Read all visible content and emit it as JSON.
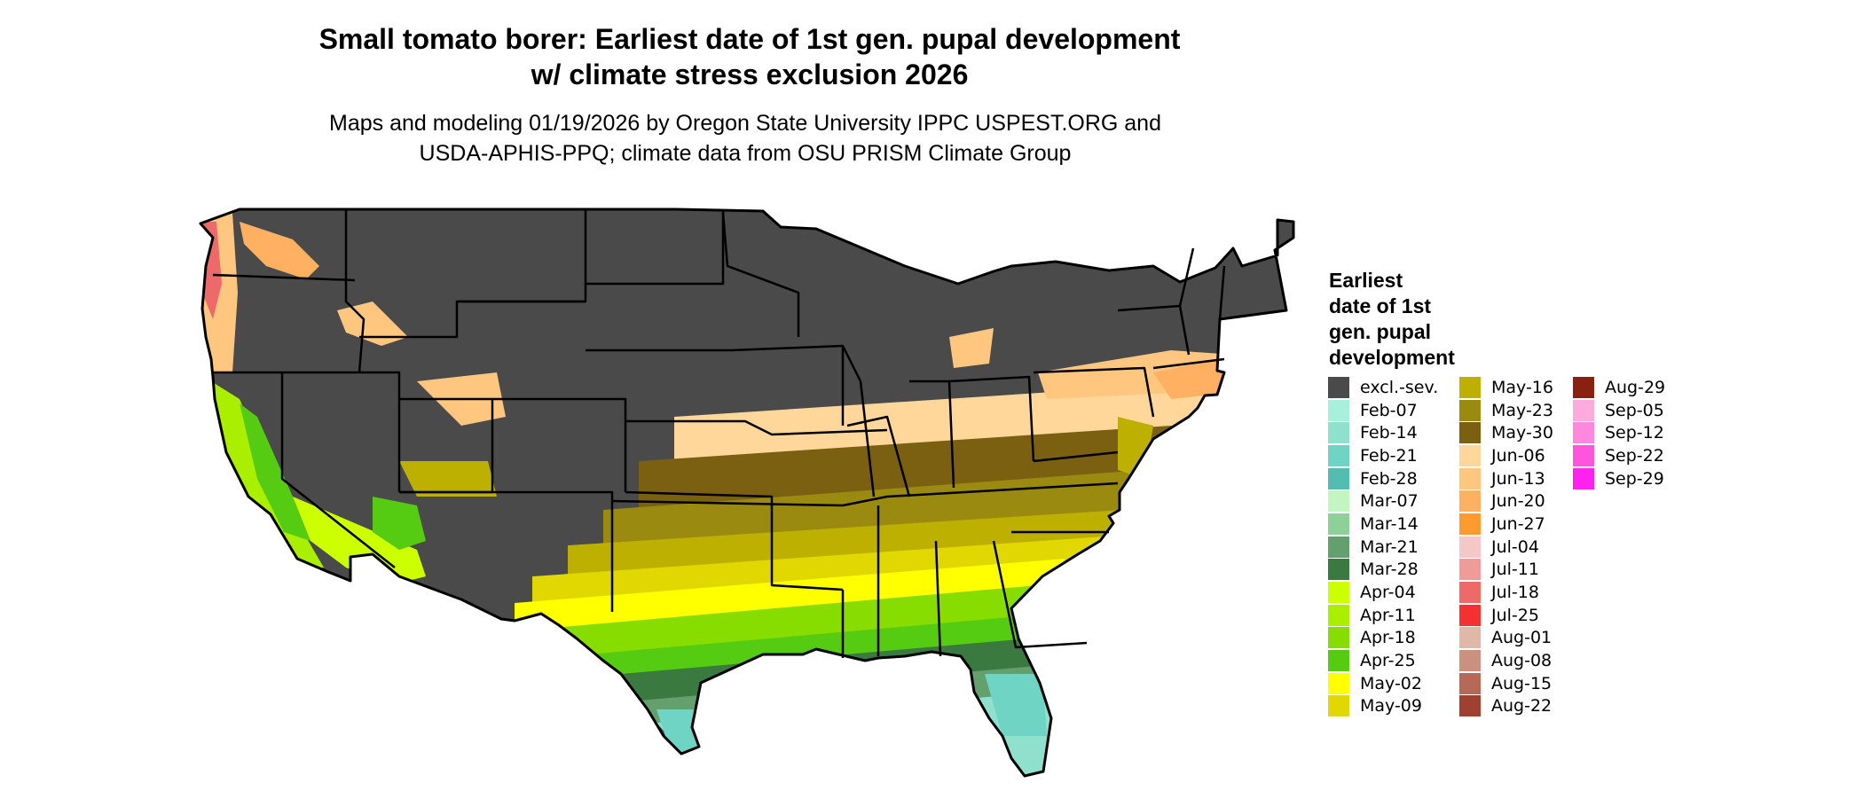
{
  "title_line1": "Small tomato borer: Earliest date of 1st gen. pupal development",
  "title_line2": "w/ climate stress exclusion 2026",
  "subtitle_line1": "Maps and modeling 01/19/2026 by Oregon State University IPPC USPEST.ORG and",
  "subtitle_line2": "USDA-APHIS-PPQ; climate data from OSU PRISM Climate Group",
  "legend": {
    "title_lines": [
      "Earliest",
      "date of 1st",
      "gen. pupal",
      "development"
    ],
    "items": [
      {
        "label": "excl.-sev.",
        "color": "#4a4a4a"
      },
      {
        "label": "Feb-07",
        "color": "#a8f0dc"
      },
      {
        "label": "Feb-14",
        "color": "#8fe0cc"
      },
      {
        "label": "Feb-21",
        "color": "#6fd4c4"
      },
      {
        "label": "Feb-28",
        "color": "#52bdb0"
      },
      {
        "label": "Mar-07",
        "color": "#c2f5c2"
      },
      {
        "label": "Mar-14",
        "color": "#8ed09a"
      },
      {
        "label": "Mar-21",
        "color": "#63a06e"
      },
      {
        "label": "Mar-28",
        "color": "#3a7a40"
      },
      {
        "label": "Apr-04",
        "color": "#ccff00"
      },
      {
        "label": "Apr-11",
        "color": "#aaee00"
      },
      {
        "label": "Apr-18",
        "color": "#88dd00"
      },
      {
        "label": "Apr-25",
        "color": "#55cc11"
      },
      {
        "label": "May-02",
        "color": "#ffff00"
      },
      {
        "label": "May-09",
        "color": "#e0d800"
      },
      {
        "label": "May-16",
        "color": "#bdb000"
      },
      {
        "label": "May-23",
        "color": "#9a8a10"
      },
      {
        "label": "May-30",
        "color": "#7a6010"
      },
      {
        "label": "Jun-06",
        "color": "#ffd79a"
      },
      {
        "label": "Jun-13",
        "color": "#ffc680"
      },
      {
        "label": "Jun-20",
        "color": "#ffb060"
      },
      {
        "label": "Jun-27",
        "color": "#ff9a30"
      },
      {
        "label": "Jul-04",
        "color": "#f5c8c8"
      },
      {
        "label": "Jul-11",
        "color": "#f09a9a"
      },
      {
        "label": "Jul-18",
        "color": "#ee6a6a"
      },
      {
        "label": "Jul-25",
        "color": "#f53030"
      },
      {
        "label": "Aug-01",
        "color": "#e0b8a8"
      },
      {
        "label": "Aug-08",
        "color": "#cc9080"
      },
      {
        "label": "Aug-15",
        "color": "#b86858"
      },
      {
        "label": "Aug-22",
        "color": "#a04030"
      },
      {
        "label": "Aug-29",
        "color": "#8a2010"
      },
      {
        "label": "Sep-05",
        "color": "#ffaadd"
      },
      {
        "label": "Sep-12",
        "color": "#ff88dd"
      },
      {
        "label": "Sep-22",
        "color": "#ff55dd"
      },
      {
        "label": "Sep-29",
        "color": "#ff22ee"
      }
    ]
  }
}
